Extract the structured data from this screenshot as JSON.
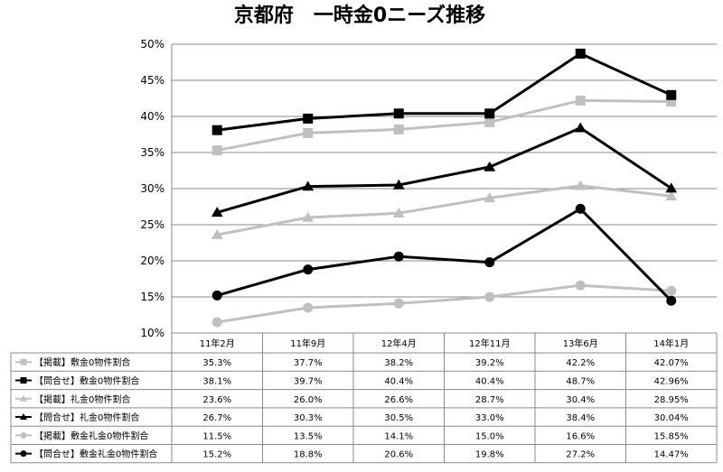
{
  "chart_data": {
    "type": "line",
    "title": "京都府　一時金0ニーズ推移",
    "xlabel": "",
    "ylabel": "",
    "categories": [
      "11年2月",
      "11年9月",
      "12年4月",
      "12年11月",
      "13年6月",
      "14年1月"
    ],
    "ylim": [
      10,
      50
    ],
    "yticks": [
      "10%",
      "15%",
      "20%",
      "25%",
      "30%",
      "35%",
      "40%",
      "45%",
      "50%"
    ],
    "grid": true,
    "legend": "data-table",
    "series": [
      {
        "name": "【掲載】敷金0物件割合",
        "values": [
          35.3,
          37.7,
          38.2,
          39.2,
          42.2,
          42.07
        ],
        "labels": [
          "35.3%",
          "37.7%",
          "38.2%",
          "39.2%",
          "42.2%",
          "42.07%"
        ],
        "color": "#c0c0c0",
        "marker": "square"
      },
      {
        "name": "【問合せ】敷金0物件割合",
        "values": [
          38.1,
          39.7,
          40.4,
          40.4,
          48.7,
          42.96
        ],
        "labels": [
          "38.1%",
          "39.7%",
          "40.4%",
          "40.4%",
          "48.7%",
          "42.96%"
        ],
        "color": "#000000",
        "marker": "square"
      },
      {
        "name": "【掲載】礼金0物件割合",
        "values": [
          23.6,
          26.0,
          26.6,
          28.7,
          30.4,
          28.95
        ],
        "labels": [
          "23.6%",
          "26.0%",
          "26.6%",
          "28.7%",
          "30.4%",
          "28.95%"
        ],
        "color": "#c0c0c0",
        "marker": "triangle"
      },
      {
        "name": "【問合せ】礼金0物件割合",
        "values": [
          26.7,
          30.3,
          30.5,
          33.0,
          38.4,
          30.04
        ],
        "labels": [
          "26.7%",
          "30.3%",
          "30.5%",
          "33.0%",
          "38.4%",
          "30.04%"
        ],
        "color": "#000000",
        "marker": "triangle"
      },
      {
        "name": "【掲載】敷金礼金0物件割合",
        "values": [
          11.5,
          13.5,
          14.1,
          15.0,
          16.6,
          15.85
        ],
        "labels": [
          "11.5%",
          "13.5%",
          "14.1%",
          "15.0%",
          "16.6%",
          "15.85%"
        ],
        "color": "#c0c0c0",
        "marker": "circle"
      },
      {
        "name": "【問合せ】敷金礼金0物件割合",
        "values": [
          15.2,
          18.8,
          20.6,
          19.8,
          27.2,
          14.47
        ],
        "labels": [
          "15.2%",
          "18.8%",
          "20.6%",
          "19.8%",
          "27.2%",
          "14.47%"
        ],
        "color": "#000000",
        "marker": "circle"
      }
    ]
  }
}
